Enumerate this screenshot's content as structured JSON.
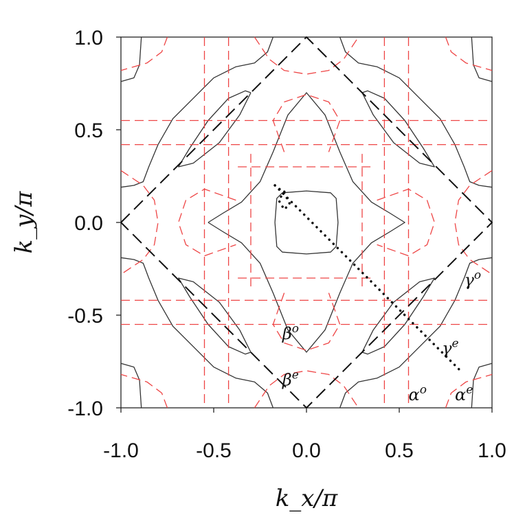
{
  "chart_data": {
    "type": "line",
    "title": "",
    "xlabel": "k_x/π",
    "ylabel": "k_y/π",
    "xlim": [
      -1.0,
      1.0
    ],
    "ylim": [
      -1.0,
      1.0
    ],
    "x_ticks": [
      "-1.0",
      "-0.5",
      "0.0",
      "0.5",
      "1.0"
    ],
    "y_ticks": [
      "1.0",
      "0.5",
      "0.0",
      "-0.5",
      "-1.0"
    ],
    "grid": false,
    "legend": "none",
    "colors": {
      "solid": "#333333",
      "dashed_red": "#ee4444",
      "diamond": "#111111",
      "dotted": "#111111"
    },
    "series": [
      {
        "style": "solid-black",
        "points": [
          [
            0.17,
            0.0
          ],
          [
            0.16,
            0.13
          ],
          [
            0.13,
            0.16
          ],
          [
            0.0,
            0.17
          ],
          [
            -0.13,
            0.16
          ],
          [
            -0.16,
            0.13
          ],
          [
            -0.17,
            0.0
          ],
          [
            -0.16,
            -0.13
          ],
          [
            -0.13,
            -0.16
          ],
          [
            0.0,
            -0.17
          ],
          [
            0.13,
            -0.16
          ],
          [
            0.16,
            -0.13
          ],
          [
            0.17,
            0.0
          ]
        ]
      },
      {
        "style": "solid-black",
        "points": [
          [
            -0.53,
            0.0
          ],
          [
            -0.45,
            0.05
          ],
          [
            -0.35,
            0.11
          ],
          [
            -0.25,
            0.22
          ],
          [
            -0.18,
            0.38
          ],
          [
            -0.1,
            0.58
          ],
          [
            0.0,
            0.7
          ],
          [
            0.1,
            0.58
          ],
          [
            0.18,
            0.38
          ],
          [
            0.25,
            0.22
          ],
          [
            0.35,
            0.11
          ],
          [
            0.45,
            0.05
          ],
          [
            0.53,
            0.0
          ],
          [
            0.45,
            -0.05
          ],
          [
            0.35,
            -0.11
          ],
          [
            0.25,
            -0.22
          ],
          [
            0.18,
            -0.38
          ],
          [
            0.1,
            -0.58
          ],
          [
            0.0,
            -0.7
          ],
          [
            -0.1,
            -0.58
          ],
          [
            -0.18,
            -0.38
          ],
          [
            -0.25,
            -0.22
          ],
          [
            -0.35,
            -0.11
          ],
          [
            -0.45,
            -0.05
          ],
          [
            -0.53,
            0.0
          ]
        ]
      },
      {
        "style": "solid-black",
        "points": [
          [
            -0.3,
            0.7
          ],
          [
            -0.36,
            0.58
          ],
          [
            -0.47,
            0.43
          ],
          [
            -0.61,
            0.32
          ],
          [
            -0.69,
            0.3
          ],
          [
            -0.63,
            0.4
          ],
          [
            -0.53,
            0.55
          ],
          [
            -0.42,
            0.67
          ],
          [
            -0.33,
            0.71
          ],
          [
            -0.3,
            0.7
          ]
        ]
      },
      {
        "style": "solid-black",
        "points": [
          [
            0.3,
            0.7
          ],
          [
            0.36,
            0.58
          ],
          [
            0.47,
            0.43
          ],
          [
            0.61,
            0.32
          ],
          [
            0.69,
            0.3
          ],
          [
            0.63,
            0.4
          ],
          [
            0.53,
            0.55
          ],
          [
            0.42,
            0.67
          ],
          [
            0.33,
            0.71
          ],
          [
            0.3,
            0.7
          ]
        ]
      },
      {
        "style": "solid-black",
        "points": [
          [
            -0.3,
            -0.7
          ],
          [
            -0.36,
            -0.58
          ],
          [
            -0.47,
            -0.43
          ],
          [
            -0.61,
            -0.32
          ],
          [
            -0.69,
            -0.3
          ],
          [
            -0.63,
            -0.4
          ],
          [
            -0.53,
            -0.55
          ],
          [
            -0.42,
            -0.67
          ],
          [
            -0.33,
            -0.71
          ],
          [
            -0.3,
            -0.7
          ]
        ]
      },
      {
        "style": "solid-black",
        "points": [
          [
            0.3,
            -0.7
          ],
          [
            0.36,
            -0.58
          ],
          [
            0.47,
            -0.43
          ],
          [
            0.61,
            -0.32
          ],
          [
            0.69,
            -0.3
          ],
          [
            0.63,
            -0.4
          ],
          [
            0.53,
            -0.55
          ],
          [
            0.42,
            -0.67
          ],
          [
            0.33,
            -0.71
          ],
          [
            0.3,
            -0.7
          ]
        ]
      },
      {
        "style": "solid-black",
        "points": [
          [
            -0.18,
            1.0
          ],
          [
            -0.21,
            0.92
          ],
          [
            -0.28,
            0.86
          ],
          [
            -0.38,
            0.84
          ],
          [
            -0.5,
            0.78
          ],
          [
            -0.6,
            0.68
          ],
          [
            -0.72,
            0.56
          ],
          [
            -0.8,
            0.42
          ],
          [
            -0.85,
            0.3
          ],
          [
            -0.88,
            0.22
          ],
          [
            -0.93,
            0.2
          ],
          [
            -1.0,
            0.19
          ]
        ]
      },
      {
        "style": "solid-black",
        "points": [
          [
            0.18,
            1.0
          ],
          [
            0.21,
            0.92
          ],
          [
            0.28,
            0.86
          ],
          [
            0.38,
            0.84
          ],
          [
            0.5,
            0.78
          ],
          [
            0.6,
            0.68
          ],
          [
            0.72,
            0.56
          ],
          [
            0.8,
            0.42
          ],
          [
            0.85,
            0.3
          ],
          [
            0.88,
            0.22
          ],
          [
            0.93,
            0.2
          ],
          [
            1.0,
            0.19
          ]
        ]
      },
      {
        "style": "solid-black",
        "points": [
          [
            -0.18,
            -1.0
          ],
          [
            -0.21,
            -0.92
          ],
          [
            -0.28,
            -0.86
          ],
          [
            -0.38,
            -0.84
          ],
          [
            -0.5,
            -0.78
          ],
          [
            -0.6,
            -0.68
          ],
          [
            -0.72,
            -0.56
          ],
          [
            -0.8,
            -0.42
          ],
          [
            -0.85,
            -0.3
          ],
          [
            -0.88,
            -0.22
          ],
          [
            -0.93,
            -0.2
          ],
          [
            -1.0,
            -0.19
          ]
        ]
      },
      {
        "style": "solid-black",
        "points": [
          [
            0.18,
            -1.0
          ],
          [
            0.21,
            -0.92
          ],
          [
            0.28,
            -0.86
          ],
          [
            0.38,
            -0.84
          ],
          [
            0.5,
            -0.78
          ],
          [
            0.6,
            -0.68
          ],
          [
            0.72,
            -0.56
          ],
          [
            0.8,
            -0.42
          ],
          [
            0.85,
            -0.3
          ],
          [
            0.88,
            -0.22
          ],
          [
            0.93,
            -0.2
          ],
          [
            1.0,
            -0.19
          ]
        ]
      },
      {
        "style": "solid-black",
        "points": [
          [
            -1.0,
            0.76
          ],
          [
            -0.93,
            0.78
          ],
          [
            -0.9,
            0.85
          ],
          [
            -0.89,
            1.0
          ]
        ]
      },
      {
        "style": "solid-black",
        "points": [
          [
            1.0,
            0.76
          ],
          [
            0.93,
            0.78
          ],
          [
            0.9,
            0.85
          ],
          [
            0.89,
            1.0
          ]
        ]
      },
      {
        "style": "solid-black",
        "points": [
          [
            -1.0,
            -0.76
          ],
          [
            -0.93,
            -0.78
          ],
          [
            -0.9,
            -0.85
          ],
          [
            -0.89,
            -1.0
          ]
        ]
      },
      {
        "style": "solid-black",
        "points": [
          [
            1.0,
            -0.76
          ],
          [
            0.93,
            -0.78
          ],
          [
            0.9,
            -0.85
          ],
          [
            0.89,
            -1.0
          ]
        ]
      },
      {
        "style": "dashed-red",
        "points": [
          [
            -0.55,
            1.0
          ],
          [
            -0.55,
            -1.0
          ]
        ]
      },
      {
        "style": "dashed-red",
        "points": [
          [
            -0.42,
            1.0
          ],
          [
            -0.42,
            -1.0
          ]
        ]
      },
      {
        "style": "dashed-red",
        "points": [
          [
            0.42,
            1.0
          ],
          [
            0.42,
            -1.0
          ]
        ]
      },
      {
        "style": "dashed-red",
        "points": [
          [
            0.55,
            1.0
          ],
          [
            0.55,
            -1.0
          ]
        ]
      },
      {
        "style": "dashed-red",
        "points": [
          [
            -1.0,
            0.55
          ],
          [
            1.0,
            0.55
          ]
        ]
      },
      {
        "style": "dashed-red",
        "points": [
          [
            -1.0,
            0.42
          ],
          [
            1.0,
            0.42
          ]
        ]
      },
      {
        "style": "dashed-red",
        "points": [
          [
            -1.0,
            -0.42
          ],
          [
            1.0,
            -0.42
          ]
        ]
      },
      {
        "style": "dashed-red",
        "points": [
          [
            -1.0,
            -0.55
          ],
          [
            1.0,
            -0.55
          ]
        ]
      },
      {
        "style": "dashed-red",
        "points": [
          [
            -0.12,
            0.38
          ],
          [
            -0.18,
            0.55
          ],
          [
            -0.12,
            0.65
          ],
          [
            0.0,
            0.69
          ],
          [
            0.12,
            0.65
          ],
          [
            0.18,
            0.55
          ],
          [
            0.12,
            0.38
          ]
        ]
      },
      {
        "style": "dashed-red",
        "points": [
          [
            -0.12,
            -0.38
          ],
          [
            -0.18,
            -0.55
          ],
          [
            -0.12,
            -0.65
          ],
          [
            0.0,
            -0.69
          ],
          [
            0.12,
            -0.65
          ],
          [
            0.18,
            -0.55
          ],
          [
            0.12,
            -0.38
          ]
        ]
      },
      {
        "style": "dashed-red",
        "points": [
          [
            -0.38,
            0.12
          ],
          [
            -0.55,
            0.18
          ],
          [
            -0.65,
            0.12
          ],
          [
            -0.69,
            0.0
          ],
          [
            -0.65,
            -0.12
          ],
          [
            -0.55,
            -0.18
          ],
          [
            -0.38,
            -0.12
          ]
        ]
      },
      {
        "style": "dashed-red",
        "points": [
          [
            0.38,
            0.12
          ],
          [
            0.55,
            0.18
          ],
          [
            0.65,
            0.12
          ],
          [
            0.69,
            0.0
          ],
          [
            0.65,
            -0.12
          ],
          [
            0.55,
            -0.18
          ],
          [
            0.38,
            -0.12
          ]
        ]
      },
      {
        "style": "dashed-red",
        "points": [
          [
            -0.3,
            0.37
          ],
          [
            -0.3,
            -0.37
          ]
        ]
      },
      {
        "style": "dashed-red",
        "points": [
          [
            0.3,
            0.37
          ],
          [
            0.3,
            -0.37
          ]
        ]
      },
      {
        "style": "dashed-red",
        "points": [
          [
            -0.37,
            0.3
          ],
          [
            0.37,
            0.3
          ]
        ]
      },
      {
        "style": "dashed-red",
        "points": [
          [
            -0.37,
            -0.3
          ],
          [
            0.37,
            -0.3
          ]
        ]
      },
      {
        "style": "dashed-red",
        "points": [
          [
            -0.75,
            1.0
          ],
          [
            -0.78,
            0.92
          ],
          [
            -0.86,
            0.86
          ],
          [
            -1.0,
            0.82
          ]
        ]
      },
      {
        "style": "dashed-red",
        "points": [
          [
            0.75,
            1.0
          ],
          [
            0.78,
            0.92
          ],
          [
            0.86,
            0.86
          ],
          [
            1.0,
            0.82
          ]
        ]
      },
      {
        "style": "dashed-red",
        "points": [
          [
            -0.75,
            -1.0
          ],
          [
            -0.78,
            -0.92
          ],
          [
            -0.86,
            -0.86
          ],
          [
            -1.0,
            -0.82
          ]
        ]
      },
      {
        "style": "dashed-red",
        "points": [
          [
            0.75,
            -1.0
          ],
          [
            0.78,
            -0.92
          ],
          [
            0.86,
            -0.86
          ],
          [
            1.0,
            -0.82
          ]
        ]
      },
      {
        "style": "dashed-red",
        "points": [
          [
            -0.28,
            1.0
          ],
          [
            -0.2,
            0.88
          ],
          [
            -0.12,
            0.82
          ],
          [
            0.0,
            0.8
          ],
          [
            0.12,
            0.82
          ],
          [
            0.2,
            0.88
          ],
          [
            0.28,
            1.0
          ]
        ]
      },
      {
        "style": "dashed-red",
        "points": [
          [
            -0.28,
            -1.0
          ],
          [
            -0.2,
            -0.88
          ],
          [
            -0.12,
            -0.82
          ],
          [
            0.0,
            -0.8
          ],
          [
            0.12,
            -0.82
          ],
          [
            0.2,
            -0.88
          ],
          [
            0.28,
            -1.0
          ]
        ]
      },
      {
        "style": "dashed-red",
        "points": [
          [
            -1.0,
            0.28
          ],
          [
            -0.88,
            0.2
          ],
          [
            -0.82,
            0.12
          ],
          [
            -0.8,
            0.0
          ],
          [
            -0.82,
            -0.12
          ],
          [
            -0.88,
            -0.2
          ],
          [
            -1.0,
            -0.28
          ]
        ]
      },
      {
        "style": "dashed-red",
        "points": [
          [
            1.0,
            0.28
          ],
          [
            0.88,
            0.2
          ],
          [
            0.82,
            0.12
          ],
          [
            0.8,
            0.0
          ],
          [
            0.82,
            -0.12
          ],
          [
            0.88,
            -0.2
          ],
          [
            1.0,
            -0.28
          ]
        ]
      },
      {
        "style": "dashed-black",
        "points": [
          [
            -1.0,
            0.0
          ],
          [
            0.0,
            1.0
          ],
          [
            1.0,
            0.0
          ],
          [
            0.0,
            -1.0
          ],
          [
            -1.0,
            0.0
          ]
        ]
      },
      {
        "style": "dotted-black",
        "points": [
          [
            -0.17,
            0.2
          ],
          [
            0.84,
            -0.81
          ]
        ]
      },
      {
        "style": "dotted-black",
        "points": [
          [
            -0.17,
            0.2
          ],
          [
            -0.12,
            0.16
          ],
          [
            -0.09,
            0.1
          ],
          [
            -0.12,
            0.07
          ],
          [
            -0.15,
            0.12
          ],
          [
            -0.11,
            0.18
          ]
        ]
      }
    ],
    "annotations": [
      {
        "base": "β",
        "sup": "o",
        "x": -0.13,
        "y": -0.63
      },
      {
        "base": "β",
        "sup": "e",
        "x": -0.13,
        "y": -0.88
      },
      {
        "base": "γ",
        "sup": "o",
        "x": 0.85,
        "y": -0.34
      },
      {
        "base": "γ",
        "sup": "e",
        "x": 0.73,
        "y": -0.71
      },
      {
        "base": "α",
        "sup": "o",
        "x": 0.55,
        "y": -0.96
      },
      {
        "base": "α",
        "sup": "e",
        "x": 0.8,
        "y": -0.96
      }
    ]
  }
}
